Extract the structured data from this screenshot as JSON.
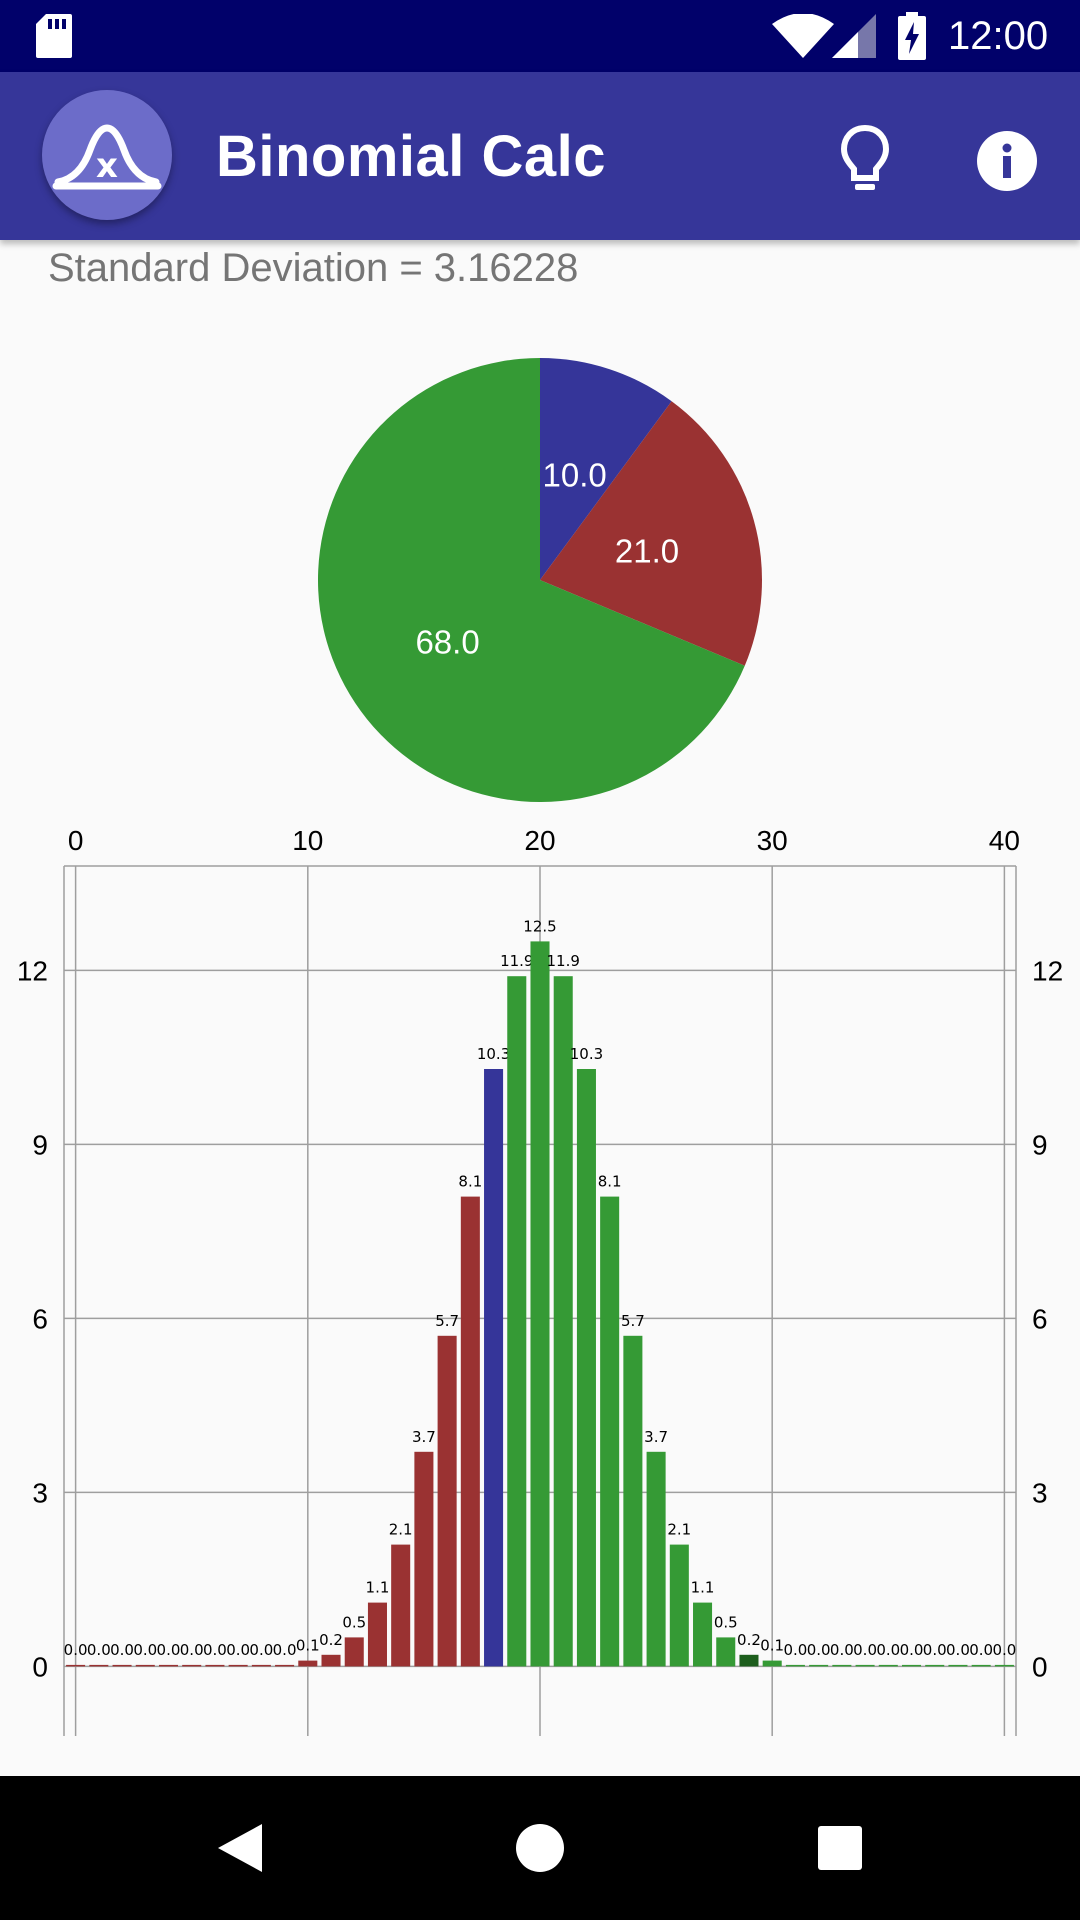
{
  "status_bar": {
    "time": "12:00"
  },
  "app_bar": {
    "title": "Binomial Calc",
    "logo_letter": "x"
  },
  "result": {
    "std_text": "Standard Deviation = 3.16228"
  },
  "colors": {
    "status_bar": "#01016a",
    "app_bar": "#363699",
    "blue": "#353599",
    "red": "#9a3232",
    "green": "#359a35",
    "dark_green": "#1d5e1d"
  },
  "chart_data": [
    {
      "type": "pie",
      "slices": [
        {
          "label": "10.0",
          "value": 10.0,
          "color": "#353599"
        },
        {
          "label": "21.0",
          "value": 21.0,
          "color": "#9a3232"
        },
        {
          "label": "68.0",
          "value": 68.0,
          "color": "#359a35"
        }
      ]
    },
    {
      "type": "bar",
      "x": [
        0,
        1,
        2,
        3,
        4,
        5,
        6,
        7,
        8,
        9,
        10,
        11,
        12,
        13,
        14,
        15,
        16,
        17,
        18,
        19,
        20,
        21,
        22,
        23,
        24,
        25,
        26,
        27,
        28,
        29,
        30,
        31,
        32,
        33,
        34,
        35,
        36,
        37,
        38,
        39,
        40
      ],
      "values": [
        0.0,
        0.0,
        0.0,
        0.0,
        0.0,
        0.0,
        0.0,
        0.0,
        0.0,
        0.0,
        0.1,
        0.2,
        0.5,
        1.1,
        2.1,
        3.7,
        5.7,
        8.1,
        10.3,
        11.9,
        12.5,
        11.9,
        10.3,
        8.1,
        5.7,
        3.7,
        2.1,
        1.1,
        0.5,
        0.2,
        0.1,
        0.0,
        0.0,
        0.0,
        0.0,
        0.0,
        0.0,
        0.0,
        0.0,
        0.0,
        0.0
      ],
      "labels": [
        "0.0",
        "0.0",
        "0.0",
        "0.0",
        "0.0",
        "0.0",
        "0.0",
        "0.0",
        "0.0",
        "0.0",
        "0.1",
        "0.2",
        "0.5",
        "1.1",
        "2.1",
        "3.7",
        "5.7",
        "8.1",
        "10.3",
        "11.9",
        "12.5",
        "11.9",
        "10.3",
        "8.1",
        "5.7",
        "3.7",
        "2.1",
        "1.1",
        "0.5",
        "0.2",
        "0.1",
        "0.0",
        "0.0",
        "0.0",
        "0.0",
        "0.0",
        "0.0",
        "0.0",
        "0.0",
        "0.0",
        "0.0"
      ],
      "bar_colors": [
        "#9a3232",
        "#9a3232",
        "#9a3232",
        "#9a3232",
        "#9a3232",
        "#9a3232",
        "#9a3232",
        "#9a3232",
        "#9a3232",
        "#9a3232",
        "#9a3232",
        "#9a3232",
        "#9a3232",
        "#9a3232",
        "#9a3232",
        "#9a3232",
        "#9a3232",
        "#9a3232",
        "#353599",
        "#359a35",
        "#359a35",
        "#359a35",
        "#359a35",
        "#359a35",
        "#359a35",
        "#359a35",
        "#359a35",
        "#359a35",
        "#359a35",
        "#1d5e1d",
        "#359a35",
        "#359a35",
        "#359a35",
        "#359a35",
        "#359a35",
        "#359a35",
        "#359a35",
        "#359a35",
        "#359a35",
        "#359a35",
        "#359a35"
      ],
      "x_ticks": [
        "0",
        "10",
        "20",
        "30",
        "40"
      ],
      "y_ticks": [
        "0",
        "3",
        "6",
        "9",
        "12"
      ],
      "xlim": [
        -0.5,
        40.5
      ],
      "ylim": [
        -1.2,
        13.8
      ],
      "grid": true,
      "axis_position": {
        "x": "top",
        "y": "left-and-right"
      }
    }
  ]
}
